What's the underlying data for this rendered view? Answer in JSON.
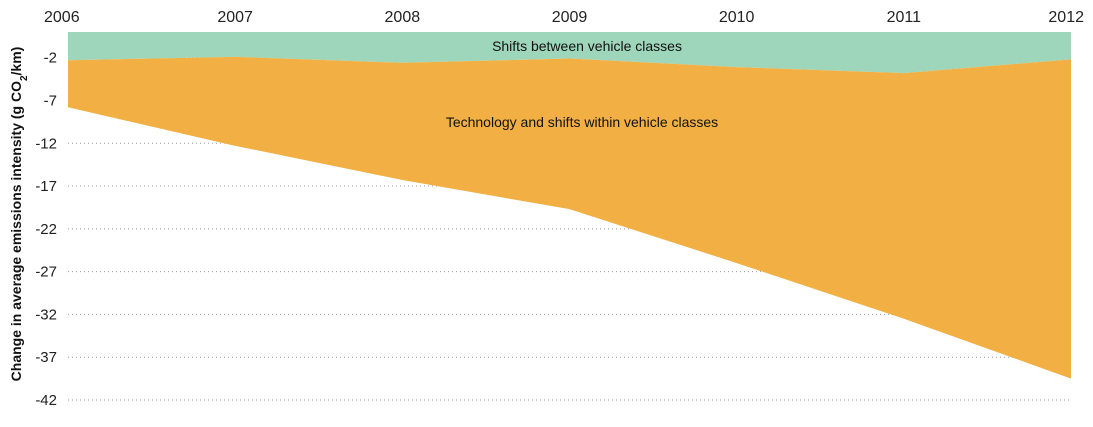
{
  "chart_data": {
    "type": "area",
    "x": [
      2006,
      2007,
      2008,
      2009,
      2010,
      2011,
      2012
    ],
    "x_tick_labels": [
      "2006",
      "2007",
      "2008",
      "2009",
      "2010",
      "2011",
      "2012"
    ],
    "y_ticks": [
      -2,
      -7,
      -12,
      -17,
      -22,
      -27,
      -32,
      -37,
      -42
    ],
    "y_tick_labels": [
      "-2",
      "-7",
      "-12",
      "-17",
      "-22",
      "-27",
      "-32",
      "-37",
      "-42"
    ],
    "ylim": [
      -42,
      1
    ],
    "ylabel_main": "Change in average emissions intensity (g CO",
    "ylabel_sub": "2",
    "ylabel_end": "/km)",
    "grid": true,
    "series": [
      {
        "name": "Shifts between vehicle classes",
        "color": "#9dd6bb",
        "lower": [
          -2.3,
          -1.9,
          -2.6,
          -2.1,
          -3.1,
          -3.8,
          -2.2
        ],
        "upper": [
          1,
          1,
          1,
          1,
          1,
          1,
          1
        ]
      },
      {
        "name": "Technology and shifts within vehicle classes",
        "color": "#f2b044",
        "lower": [
          -7.8,
          -12.3,
          -16.3,
          -19.7,
          -26.0,
          -32.5,
          -39.5
        ],
        "upper": [
          -2.3,
          -1.9,
          -2.6,
          -2.1,
          -3.1,
          -3.8,
          -2.2
        ]
      }
    ]
  }
}
